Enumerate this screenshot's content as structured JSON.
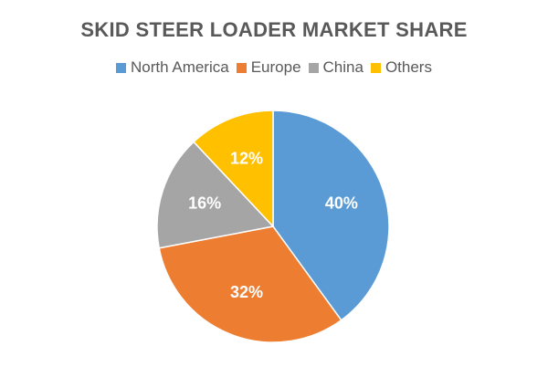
{
  "chart_data": {
    "type": "pie",
    "title": "SKID STEER LOADER MARKET SHARE",
    "legend_position": "top",
    "categories": [
      "North America",
      "Europe",
      "China",
      "Others"
    ],
    "values": [
      40,
      32,
      16,
      12
    ],
    "data_labels": [
      "40%",
      "32%",
      "16%",
      "12%"
    ],
    "colors": [
      "#5B9BD5",
      "#ED7D31",
      "#A5A5A5",
      "#FFC000"
    ]
  }
}
